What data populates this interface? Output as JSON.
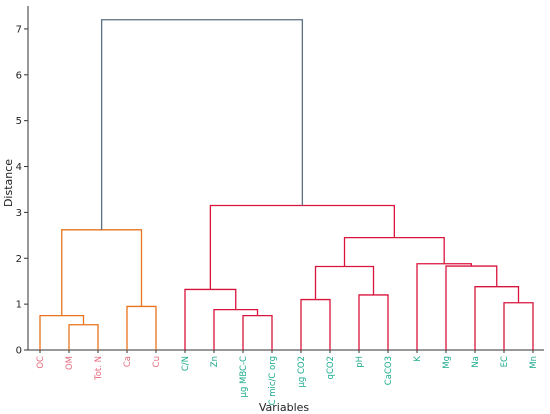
{
  "chart_data": {
    "type": "dendrogram",
    "xlabel": "Variables",
    "ylabel": "Distance",
    "ylim": [
      0,
      7.5
    ],
    "yticks": [
      0,
      1,
      2,
      3,
      4,
      5,
      6,
      7
    ],
    "leaves": [
      {
        "label": "OC",
        "cluster": "orange"
      },
      {
        "label": "OM",
        "cluster": "orange"
      },
      {
        "label": "Tot. N",
        "cluster": "orange"
      },
      {
        "label": "Ca",
        "cluster": "orange"
      },
      {
        "label": "Cu",
        "cluster": "orange"
      },
      {
        "label": "C/N",
        "cluster": "teal"
      },
      {
        "label": "Zn",
        "cluster": "teal"
      },
      {
        "label": "µg MBC-C",
        "cluster": "teal"
      },
      {
        "label": "C mic/C org",
        "cluster": "teal"
      },
      {
        "label": "µg CO2",
        "cluster": "teal"
      },
      {
        "label": "qCO2",
        "cluster": "teal"
      },
      {
        "label": "pH",
        "cluster": "teal"
      },
      {
        "label": "CaCO3",
        "cluster": "teal"
      },
      {
        "label": "K",
        "cluster": "teal"
      },
      {
        "label": "Mg",
        "cluster": "teal"
      },
      {
        "label": "Na",
        "cluster": "teal"
      },
      {
        "label": "EC",
        "cluster": "teal"
      },
      {
        "label": "Mn",
        "cluster": "teal"
      }
    ],
    "merges": [
      {
        "left": "OM",
        "right": "Tot. N",
        "height": 0.55,
        "color": "orange"
      },
      {
        "left": "OC",
        "right": "OM+Tot. N",
        "height": 0.75,
        "color": "orange"
      },
      {
        "left": "Ca",
        "right": "Cu",
        "height": 0.95,
        "color": "orange"
      },
      {
        "left": "OC+OM+Tot. N",
        "right": "Ca+Cu",
        "height": 2.62,
        "color": "orange"
      },
      {
        "left": "µg MBC-C",
        "right": "C mic/C org",
        "height": 0.75,
        "color": "red"
      },
      {
        "left": "Zn",
        "right": "µg MBC-C+C mic/C org",
        "height": 0.88,
        "color": "red"
      },
      {
        "left": "C/N",
        "right": "Zn group",
        "height": 1.32,
        "color": "red"
      },
      {
        "left": "µg CO2",
        "right": "qCO2",
        "height": 1.1,
        "color": "red"
      },
      {
        "left": "pH",
        "right": "CaCO3",
        "height": 1.2,
        "color": "red"
      },
      {
        "left": "µg CO2+qCO2",
        "right": "pH+CaCO3",
        "height": 1.82,
        "color": "red"
      },
      {
        "left": "EC",
        "right": "Mn",
        "height": 1.03,
        "color": "red"
      },
      {
        "left": "Na",
        "right": "EC+Mn",
        "height": 1.38,
        "color": "red"
      },
      {
        "left": "Mg",
        "right": "Na+EC+Mn",
        "height": 1.83,
        "color": "red"
      },
      {
        "left": "K",
        "right": "Mg group",
        "height": 1.88,
        "color": "red"
      },
      {
        "left": "qCO2 group",
        "right": "K group",
        "height": 2.45,
        "color": "red"
      },
      {
        "left": "C/N group",
        "right": "qCO2/K group",
        "height": 3.15,
        "color": "red"
      },
      {
        "left": "orange cluster",
        "right": "red cluster",
        "height": 7.2,
        "color": "slate"
      }
    ],
    "colors": {
      "orange": "#e8731c",
      "red": "#d9143c",
      "slate": "#5b6f84",
      "label_orange": "#e46a7d",
      "label_teal": "#1aaa8c",
      "axis": "#333333"
    }
  }
}
